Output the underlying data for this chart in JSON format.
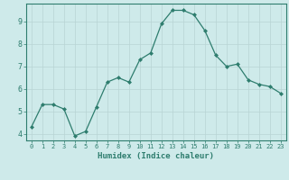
{
  "x": [
    0,
    1,
    2,
    3,
    4,
    5,
    6,
    7,
    8,
    9,
    10,
    11,
    12,
    13,
    14,
    15,
    16,
    17,
    18,
    19,
    20,
    21,
    22,
    23
  ],
  "y": [
    4.3,
    5.3,
    5.3,
    5.1,
    3.9,
    4.1,
    5.2,
    6.3,
    6.5,
    6.3,
    7.3,
    7.6,
    8.9,
    9.5,
    9.5,
    9.3,
    8.6,
    7.5,
    7.0,
    7.1,
    6.4,
    6.2,
    6.1,
    5.8
  ],
  "xlabel": "Humidex (Indice chaleur)",
  "line_color": "#2e7d6e",
  "marker_color": "#2e7d6e",
  "bg_color": "#ceeaea",
  "grid_color": "#b8d4d4",
  "axis_color": "#2e7d6e",
  "tick_color": "#2e7d6e",
  "xlim": [
    -0.5,
    23.5
  ],
  "ylim": [
    3.7,
    9.8
  ],
  "yticks": [
    4,
    5,
    6,
    7,
    8,
    9
  ],
  "xticks": [
    0,
    1,
    2,
    3,
    4,
    5,
    6,
    7,
    8,
    9,
    10,
    11,
    12,
    13,
    14,
    15,
    16,
    17,
    18,
    19,
    20,
    21,
    22,
    23
  ]
}
